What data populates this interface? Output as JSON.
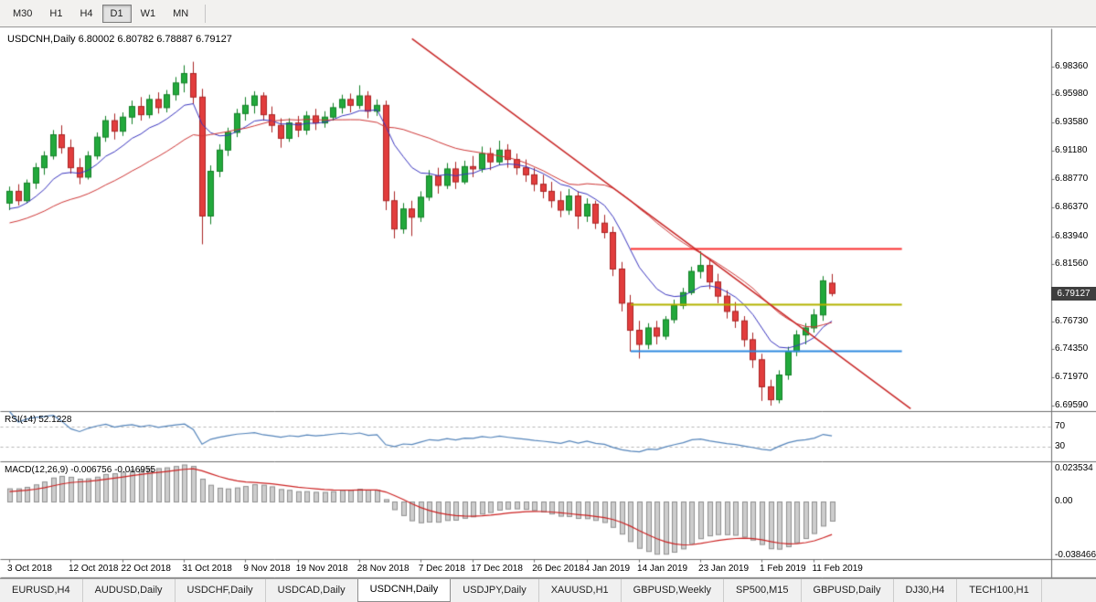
{
  "toolbar": {
    "timeframes": [
      {
        "label": "M30",
        "active": false
      },
      {
        "label": "H1",
        "active": false
      },
      {
        "label": "H4",
        "active": false
      },
      {
        "label": "D1",
        "active": true
      },
      {
        "label": "W1",
        "active": false
      },
      {
        "label": "MN",
        "active": false
      }
    ]
  },
  "chart": {
    "title": "USDCNH,Daily 6.80002 6.80782 6.78887 6.79127",
    "rsi_label": "RSI(14) 52.1228",
    "macd_label": "MACD(12,26,9) -0.006756 -0.016955"
  },
  "price_axis": {
    "ticks": [
      "6.98360",
      "6.95980",
      "6.93580",
      "6.91180",
      "6.88770",
      "6.86370",
      "6.83940",
      "6.81560",
      "6.76730",
      "6.74350",
      "6.71970",
      "6.69590"
    ],
    "current_price": "6.79127"
  },
  "rsi_axis": {
    "levels": [
      "70",
      "30"
    ]
  },
  "macd_axis": {
    "ticks": [
      "0.023534",
      "0.00",
      "-0.038466"
    ]
  },
  "date_axis": [
    {
      "label": "3 Oct 2018",
      "idx": 0
    },
    {
      "label": "12 Oct 2018",
      "idx": 7
    },
    {
      "label": "22 Oct 2018",
      "idx": 13
    },
    {
      "label": "31 Oct 2018",
      "idx": 20
    },
    {
      "label": "9 Nov 2018",
      "idx": 27
    },
    {
      "label": "19 Nov 2018",
      "idx": 33
    },
    {
      "label": "28 Nov 2018",
      "idx": 40
    },
    {
      "label": "7 Dec 2018",
      "idx": 47
    },
    {
      "label": "17 Dec 2018",
      "idx": 53
    },
    {
      "label": "26 Dec 2018",
      "idx": 60
    },
    {
      "label": "4 Jan 2019",
      "idx": 66
    },
    {
      "label": "14 Jan 2019",
      "idx": 72
    },
    {
      "label": "23 Jan 2019",
      "idx": 79
    },
    {
      "label": "1 Feb 2019",
      "idx": 86
    },
    {
      "label": "11 Feb 2019",
      "idx": 92
    }
  ],
  "tabs": [
    {
      "label": "EURUSD,H4",
      "active": false
    },
    {
      "label": "AUDUSD,Daily",
      "active": false
    },
    {
      "label": "USDCHF,Daily",
      "active": false
    },
    {
      "label": "USDCAD,Daily",
      "active": false
    },
    {
      "label": "USDCNH,Daily",
      "active": true
    },
    {
      "label": "USDJPY,Daily",
      "active": false
    },
    {
      "label": "XAUUSD,H1",
      "active": false
    },
    {
      "label": "GBPUSD,Weekly",
      "active": false
    },
    {
      "label": "SP500,M15",
      "active": false
    },
    {
      "label": "GBPUSD,Daily",
      "active": false
    },
    {
      "label": "DJ30,H4",
      "active": false
    },
    {
      "label": "TECH100,H1",
      "active": false
    }
  ],
  "chart_data": {
    "type": "candlestick",
    "symbol": "USDCNH",
    "timeframe": "Daily",
    "last_ohlc": {
      "open": 6.80002,
      "high": 6.80782,
      "low": 6.78887,
      "close": 6.79127
    },
    "y_range": [
      6.691,
      7.016
    ],
    "candles": [
      [
        6.868,
        6.882,
        6.862,
        6.878
      ],
      [
        6.878,
        6.884,
        6.866,
        6.87
      ],
      [
        6.87,
        6.888,
        6.868,
        6.885
      ],
      [
        6.885,
        6.902,
        6.88,
        6.898
      ],
      [
        6.898,
        6.912,
        6.892,
        6.908
      ],
      [
        6.908,
        6.93,
        6.905,
        6.926
      ],
      [
        6.926,
        6.934,
        6.91,
        6.915
      ],
      [
        6.915,
        6.922,
        6.893,
        6.898
      ],
      [
        6.898,
        6.906,
        6.884,
        6.89
      ],
      [
        6.89,
        6.912,
        6.888,
        6.908
      ],
      [
        6.908,
        6.928,
        6.905,
        6.924
      ],
      [
        6.924,
        6.942,
        6.92,
        6.938
      ],
      [
        6.938,
        6.944,
        6.922,
        6.929
      ],
      [
        6.929,
        6.945,
        6.925,
        6.941
      ],
      [
        6.941,
        6.955,
        6.935,
        6.95
      ],
      [
        6.95,
        6.958,
        6.938,
        6.943
      ],
      [
        6.943,
        6.96,
        6.94,
        6.956
      ],
      [
        6.956,
        6.962,
        6.944,
        6.949
      ],
      [
        6.949,
        6.964,
        6.945,
        6.96
      ],
      [
        6.96,
        6.975,
        6.955,
        6.97
      ],
      [
        6.97,
        6.985,
        6.962,
        6.978
      ],
      [
        6.978,
        6.988,
        6.952,
        6.958
      ],
      [
        6.958,
        6.965,
        6.833,
        6.857
      ],
      [
        6.857,
        6.9,
        6.85,
        6.895
      ],
      [
        6.895,
        6.918,
        6.89,
        6.913
      ],
      [
        6.913,
        6.932,
        6.908,
        6.928
      ],
      [
        6.928,
        6.948,
        6.924,
        6.944
      ],
      [
        6.944,
        6.958,
        6.938,
        6.951
      ],
      [
        6.951,
        6.963,
        6.944,
        6.959
      ],
      [
        6.959,
        6.962,
        6.938,
        6.943
      ],
      [
        6.943,
        6.95,
        6.928,
        6.934
      ],
      [
        6.934,
        6.94,
        6.915,
        6.923
      ],
      [
        6.923,
        6.94,
        6.92,
        6.936
      ],
      [
        6.936,
        6.942,
        6.924,
        6.93
      ],
      [
        6.93,
        6.946,
        6.926,
        6.942
      ],
      [
        6.942,
        6.948,
        6.93,
        6.936
      ],
      [
        6.936,
        6.946,
        6.932,
        6.941
      ],
      [
        6.941,
        6.953,
        6.938,
        6.949
      ],
      [
        6.949,
        6.96,
        6.944,
        6.956
      ],
      [
        6.956,
        6.961,
        6.945,
        6.951
      ],
      [
        6.951,
        6.968,
        6.948,
        6.959
      ],
      [
        6.959,
        6.963,
        6.94,
        6.946
      ],
      [
        6.946,
        6.956,
        6.942,
        6.951
      ],
      [
        6.951,
        6.955,
        6.862,
        6.87
      ],
      [
        6.87,
        6.878,
        6.838,
        6.846
      ],
      [
        6.846,
        6.868,
        6.842,
        6.863
      ],
      [
        6.863,
        6.87,
        6.84,
        6.856
      ],
      [
        6.856,
        6.878,
        6.852,
        6.873
      ],
      [
        6.873,
        6.896,
        6.87,
        6.891
      ],
      [
        6.891,
        6.898,
        6.876,
        6.883
      ],
      [
        6.883,
        6.902,
        6.88,
        6.897
      ],
      [
        6.897,
        6.903,
        6.88,
        6.886
      ],
      [
        6.886,
        6.904,
        6.884,
        6.899
      ],
      [
        6.899,
        6.908,
        6.89,
        6.897
      ],
      [
        6.897,
        6.916,
        6.894,
        6.91
      ],
      [
        6.91,
        6.915,
        6.896,
        6.903
      ],
      [
        6.903,
        6.921,
        6.9,
        6.913
      ],
      [
        6.913,
        6.918,
        6.898,
        6.905
      ],
      [
        6.905,
        6.91,
        6.892,
        6.898
      ],
      [
        6.898,
        6.905,
        6.886,
        6.892
      ],
      [
        6.892,
        6.898,
        6.878,
        6.884
      ],
      [
        6.884,
        6.892,
        6.872,
        6.878
      ],
      [
        6.878,
        6.886,
        6.864,
        6.87
      ],
      [
        6.87,
        6.878,
        6.856,
        6.862
      ],
      [
        6.862,
        6.88,
        6.858,
        6.874
      ],
      [
        6.874,
        6.878,
        6.846,
        6.857
      ],
      [
        6.857,
        6.872,
        6.852,
        6.867
      ],
      [
        6.867,
        6.87,
        6.846,
        6.851
      ],
      [
        6.851,
        6.858,
        6.838,
        6.843
      ],
      [
        6.843,
        6.848,
        6.806,
        6.812
      ],
      [
        6.812,
        6.818,
        6.776,
        6.783
      ],
      [
        6.783,
        6.79,
        6.742,
        6.76
      ],
      [
        6.76,
        6.768,
        6.736,
        6.748
      ],
      [
        6.748,
        6.766,
        6.744,
        6.762
      ],
      [
        6.762,
        6.768,
        6.748,
        6.755
      ],
      [
        6.755,
        6.772,
        6.752,
        6.769
      ],
      [
        6.769,
        6.786,
        6.766,
        6.781
      ],
      [
        6.781,
        6.796,
        6.778,
        6.792
      ],
      [
        6.792,
        6.814,
        6.79,
        6.81
      ],
      [
        6.81,
        6.827,
        6.804,
        6.815
      ],
      [
        6.815,
        6.82,
        6.795,
        6.801
      ],
      [
        6.801,
        6.808,
        6.783,
        6.789
      ],
      [
        6.789,
        6.794,
        6.77,
        6.776
      ],
      [
        6.776,
        6.784,
        6.762,
        6.768
      ],
      [
        6.768,
        6.772,
        6.746,
        6.752
      ],
      [
        6.752,
        6.758,
        6.728,
        6.735
      ],
      [
        6.735,
        6.74,
        6.7,
        6.712
      ],
      [
        6.712,
        6.718,
        6.696,
        6.701
      ],
      [
        6.701,
        6.726,
        6.698,
        6.722
      ],
      [
        6.722,
        6.746,
        6.718,
        6.742
      ],
      [
        6.742,
        6.76,
        6.738,
        6.756
      ],
      [
        6.756,
        6.766,
        6.748,
        6.762
      ],
      [
        6.762,
        6.778,
        6.758,
        6.773
      ],
      [
        6.773,
        6.806,
        6.768,
        6.802
      ],
      [
        6.80002,
        6.80782,
        6.78887,
        6.79127
      ]
    ],
    "indicators": {
      "ma_fast": {
        "type": "EMA",
        "period": 10,
        "color": "#3a35c0"
      },
      "ma_slow": {
        "type": "SMA",
        "period": 22,
        "color": "#cf3636"
      },
      "rsi": {
        "period": 14,
        "color": "#5585bb",
        "levels": [
          70,
          30
        ],
        "last": 52.1228
      },
      "macd": {
        "fast": 12,
        "slow": 26,
        "signal": 9,
        "hist_fill": "#cdcdcd",
        "hist_border": "#909090",
        "signal_color": "#cc2222",
        "last_macd": -0.006756,
        "last_signal": -0.016955
      }
    },
    "objects": {
      "trendline": {
        "color": "#c92a2a",
        "i1": 46,
        "p1": 7.0075,
        "i2": 103,
        "p2": 6.6935
      },
      "hlines": [
        {
          "price": 6.829,
          "color": "#fb2f2f",
          "i1": 71,
          "i2": 102
        },
        {
          "price": 6.782,
          "color": "#b3b300",
          "i1": 71,
          "i2": 102
        },
        {
          "price": 6.742,
          "color": "#2f89e0",
          "i1": 71,
          "i2": 102
        }
      ]
    },
    "colors": {
      "up": "#22a93c",
      "up_border": "#128026",
      "down": "#e23d3d",
      "down_border": "#aa2323",
      "separator": "#6e6e6e",
      "level_dash": "#b8b8b8"
    }
  }
}
